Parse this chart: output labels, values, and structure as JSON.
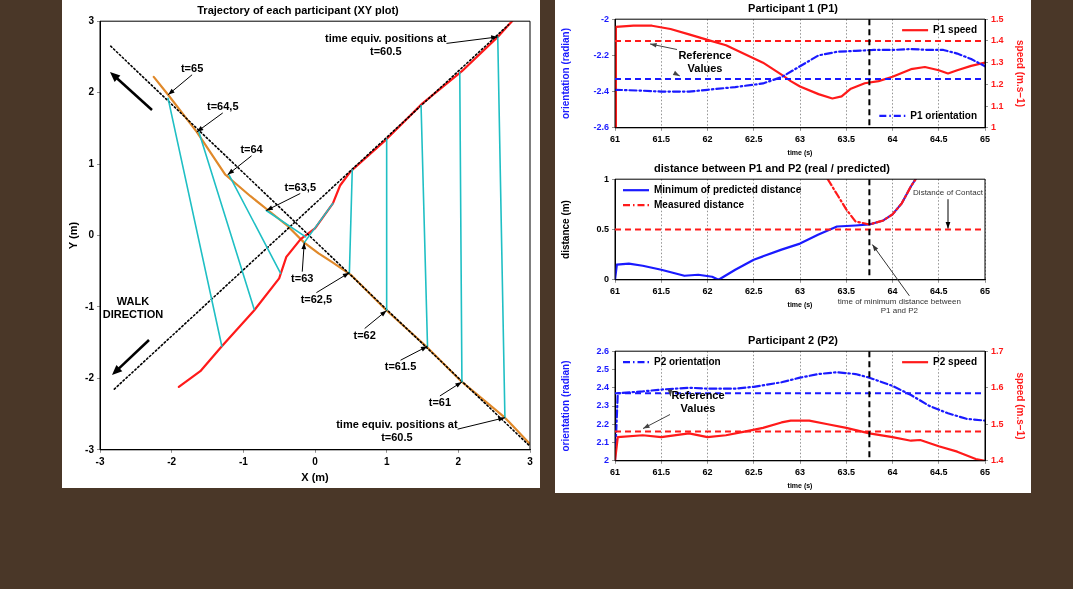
{
  "chart_data": [
    {
      "type": "line",
      "title": "Trajectory of each participant (XY plot)",
      "xlabel": "X (m)",
      "ylabel": "Y (m)",
      "xlim": [
        -3,
        3
      ],
      "xticks": [
        -3,
        -2,
        -1,
        0,
        1,
        2,
        3
      ],
      "ylim": [
        -3,
        3
      ],
      "yticks": [
        -3,
        -2,
        -1,
        0,
        1,
        2,
        3
      ],
      "series": [
        {
          "color": "#e0892a",
          "x": [
            -2.25,
            -2.05,
            -1.65,
            -1.25,
            -0.9,
            -0.65,
            -0.4,
            -0.15,
            0.05,
            0.25,
            0.5,
            1.0,
            1.55,
            2.05,
            2.65,
            3.0
          ],
          "values": [
            2.22,
            1.97,
            1.45,
            0.85,
            0.55,
            0.35,
            0.15,
            -0.1,
            -0.25,
            -0.38,
            -0.55,
            -1.05,
            -1.55,
            -2.05,
            -2.55,
            -2.92
          ]
        },
        {
          "color": "#ff1a1a",
          "x": [
            -1.9,
            -1.6,
            -1.3,
            -0.85,
            -0.5,
            -0.4,
            -0.2,
            0.0,
            0.25,
            0.35,
            0.5,
            1.0,
            1.5,
            2.05,
            2.55,
            2.75
          ],
          "values": [
            -2.12,
            -1.9,
            -1.55,
            -1.05,
            -0.6,
            -0.3,
            -0.05,
            0.1,
            0.45,
            0.7,
            0.9,
            1.35,
            1.85,
            2.3,
            2.78,
            3.0
          ]
        },
        {
          "color": "#000000",
          "line_style": "dotted",
          "x": [
            -2.85,
            3.0
          ],
          "values": [
            2.65,
            -2.95
          ]
        },
        {
          "color": "#000000",
          "line_style": "dotted",
          "x": [
            -2.8,
            2.7
          ],
          "values": [
            -2.15,
            2.95
          ]
        },
        {
          "color": "#1fbfc4",
          "x": [
            2.65,
            2.55
          ],
          "values": [
            -2.55,
            2.78
          ]
        },
        {
          "color": "#1fbfc4",
          "x": [
            2.05,
            2.02
          ],
          "values": [
            -2.05,
            2.28
          ]
        },
        {
          "color": "#1fbfc4",
          "x": [
            1.57,
            1.48
          ],
          "values": [
            -1.55,
            1.82
          ]
        },
        {
          "color": "#1fbfc4",
          "x": [
            1.0,
            1.0
          ],
          "values": [
            -1.05,
            1.35
          ]
        },
        {
          "color": "#1fbfc4",
          "x": [
            0.48,
            0.52
          ],
          "values": [
            -0.52,
            0.92
          ]
        },
        {
          "color": "#1fbfc4",
          "x": [
            -0.15,
            0.25
          ],
          "values": [
            -0.1,
            0.45
          ]
        },
        {
          "color": "#1fbfc4",
          "x": [
            -0.68,
            -0.13
          ],
          "values": [
            0.35,
            -0.02
          ]
        },
        {
          "color": "#1fbfc4",
          "x": [
            -1.2,
            -0.48
          ],
          "values": [
            0.85,
            -0.53
          ]
        },
        {
          "color": "#1fbfc4",
          "x": [
            -1.62,
            -0.85
          ],
          "values": [
            1.45,
            -1.03
          ]
        },
        {
          "color": "#1fbfc4",
          "x": [
            -2.05,
            -1.3
          ],
          "values": [
            1.92,
            -1.55
          ]
        }
      ],
      "annotations": [
        {
          "text": "t=65",
          "x": -2.05,
          "y": 1.97
        },
        {
          "text": "t=64,5",
          "x": -1.65,
          "y": 1.45
        },
        {
          "text": "t=64",
          "x": -1.22,
          "y": 0.85
        },
        {
          "text": "t=63,5",
          "x": -0.68,
          "y": 0.35
        },
        {
          "text": "t=63",
          "x": -0.15,
          "y": -0.1
        },
        {
          "text": "t=62,5",
          "x": 0.48,
          "y": -0.52
        },
        {
          "text": "t=62",
          "x": 1.0,
          "y": -1.05
        },
        {
          "text": "t=61.5",
          "x": 1.57,
          "y": -1.55
        },
        {
          "text": "t=61",
          "x": 2.05,
          "y": -2.05
        },
        {
          "text": "time equiv. positions at t=60.5",
          "x": 2.65,
          "y": -2.55
        },
        {
          "text": "time equiv. positions at t=60.5",
          "x": 2.55,
          "y": 2.78
        },
        "WALK DIRECTION"
      ]
    },
    {
      "type": "line",
      "title": "Participant 1 (P1)",
      "xlabel": "time (s)",
      "ylabel": "orientation (radian)",
      "y2label": "speed (m.s−1)",
      "xlim": [
        61,
        65
      ],
      "xticks": [
        61,
        61.5,
        62,
        62.5,
        63,
        63.5,
        64,
        64.5,
        65
      ],
      "ylim": [
        -2.6,
        -2
      ],
      "yticks": [
        -2.6,
        -2.4,
        -2.2,
        -2
      ],
      "y2lim": [
        1,
        1.5
      ],
      "y2ticks": [
        1,
        1.1,
        1.2,
        1.3,
        1.4,
        1.5
      ],
      "grid": "x",
      "legend": "right",
      "series": [
        {
          "name": "P1 speed",
          "color": "#ff1a1a",
          "axis": "y2",
          "line_style": "solid",
          "x": [
            61,
            61.01,
            61.2,
            61.4,
            61.6,
            61.8,
            62,
            62.2,
            62.4,
            62.6,
            62.8,
            62.9,
            63,
            63.2,
            63.35,
            63.45,
            63.55,
            63.7,
            63.85,
            64,
            64.2,
            64.35,
            64.5,
            64.6,
            64.7,
            64.85,
            65
          ],
          "values": [
            1.0,
            1.465,
            1.47,
            1.47,
            1.455,
            1.43,
            1.405,
            1.38,
            1.34,
            1.3,
            1.245,
            1.215,
            1.19,
            1.155,
            1.135,
            1.145,
            1.18,
            1.205,
            1.215,
            1.235,
            1.27,
            1.28,
            1.265,
            1.25,
            1.265,
            1.285,
            1.3
          ]
        },
        {
          "name": "P1 orientation",
          "color": "#1a1aff",
          "axis": "y",
          "line_style": "dashdot",
          "x": [
            61,
            61.3,
            61.5,
            61.8,
            62,
            62.3,
            62.6,
            62.8,
            63,
            63.2,
            63.4,
            63.6,
            63.8,
            64,
            64.2,
            64.4,
            64.55,
            64.7,
            64.85,
            65
          ],
          "values": [
            -2.39,
            -2.395,
            -2.4,
            -2.4,
            -2.39,
            -2.375,
            -2.355,
            -2.32,
            -2.26,
            -2.2,
            -2.18,
            -2.175,
            -2.17,
            -2.17,
            -2.165,
            -2.17,
            -2.17,
            -2.19,
            -2.22,
            -2.26
          ]
        }
      ],
      "ref_lines": [
        {
          "axis": "y2",
          "value": 1.4,
          "color": "#ff1a1a",
          "line_style": "dashed"
        },
        {
          "axis": "y",
          "value": -2.33,
          "color": "#1a1aff",
          "line_style": "dashed"
        },
        {
          "axis": "x",
          "value": 63.75,
          "color": "#000000",
          "line_style": "dashed"
        }
      ],
      "annotations": [
        {
          "text": "Reference Values",
          "x": 61.7,
          "y": -2.33
        }
      ]
    },
    {
      "type": "line",
      "title": "distance between P1 and P2 (real / predicted)",
      "xlabel": "time (s)",
      "ylabel": "distance (m)",
      "xlim": [
        61,
        65
      ],
      "xticks": [
        61,
        61.5,
        62,
        62.5,
        63,
        63.5,
        64,
        64.5,
        65
      ],
      "ylim": [
        0,
        1
      ],
      "yticks": [
        0,
        0.5,
        1
      ],
      "grid": "x",
      "legend": "top left",
      "series": [
        {
          "name": "Minimum of predicted distance",
          "color": "#1a1aff",
          "line_style": "solid",
          "x": [
            61,
            61.02,
            61.15,
            61.3,
            61.5,
            61.75,
            61.9,
            62.05,
            62.12,
            62.3,
            62.5,
            62.8,
            63,
            63.2,
            63.4,
            63.6,
            63.75,
            63.9,
            64,
            64.1,
            64.2,
            64.25
          ],
          "values": [
            0,
            0.15,
            0.16,
            0.14,
            0.1,
            0.04,
            0.05,
            0.03,
            0,
            0.1,
            0.2,
            0.3,
            0.36,
            0.45,
            0.53,
            0.54,
            0.55,
            0.59,
            0.65,
            0.76,
            0.93,
            1.0
          ]
        },
        {
          "name": "Measured distance",
          "color": "#ff1a1a",
          "line_style": "dashdot",
          "x": [
            63.3,
            63.4,
            63.5,
            63.6,
            63.75,
            63.9,
            64,
            64.1,
            64.2,
            64.25
          ],
          "values": [
            1.0,
            0.85,
            0.7,
            0.58,
            0.55,
            0.59,
            0.65,
            0.76,
            0.93,
            1.0
          ]
        }
      ],
      "ref_lines": [
        {
          "axis": "y",
          "value": 0.5,
          "label": "Distance of Contact",
          "color": "#ff1a1a",
          "line_style": "dashed"
        },
        {
          "axis": "x",
          "value": 63.75,
          "label": "time of minimum distance between P1 and P2",
          "color": "#000000",
          "line_style": "dashed"
        }
      ]
    },
    {
      "type": "line",
      "title": "Participant 2 (P2)",
      "xlabel": "time (s)",
      "ylabel": "orientation (radian)",
      "y2label": "speed (m.s−1)",
      "xlim": [
        61,
        65
      ],
      "xticks": [
        61,
        61.5,
        62,
        62.5,
        63,
        63.5,
        64,
        64.5,
        65
      ],
      "ylim": [
        2,
        2.6
      ],
      "yticks": [
        2,
        2.1,
        2.2,
        2.3,
        2.4,
        2.5,
        2.6
      ],
      "y2lim": [
        1.4,
        1.7
      ],
      "y2ticks": [
        1.4,
        1.5,
        1.6,
        1.7
      ],
      "grid": "x",
      "legend": "top",
      "series": [
        {
          "name": "P2 orientation",
          "color": "#1a1aff",
          "axis": "y",
          "line_style": "dashdot",
          "x": [
            61,
            61.03,
            61.3,
            61.5,
            61.8,
            62,
            62.3,
            62.5,
            62.8,
            63,
            63.2,
            63.4,
            63.6,
            63.75,
            64,
            64.2,
            64.4,
            64.6,
            64.8,
            65
          ],
          "values": [
            2.0,
            2.37,
            2.38,
            2.39,
            2.4,
            2.395,
            2.395,
            2.405,
            2.43,
            2.455,
            2.475,
            2.485,
            2.475,
            2.455,
            2.41,
            2.36,
            2.3,
            2.26,
            2.23,
            2.22
          ]
        },
        {
          "name": "P2 speed",
          "color": "#ff1a1a",
          "axis": "y2",
          "line_style": "solid",
          "x": [
            61,
            61.03,
            61.3,
            61.5,
            61.8,
            62,
            62.2,
            62.4,
            62.6,
            62.8,
            62.9,
            63.1,
            63.3,
            63.5,
            63.75,
            64,
            64.2,
            64.3,
            64.5,
            64.7,
            64.9,
            65
          ],
          "values": [
            1.4,
            1.465,
            1.47,
            1.465,
            1.475,
            1.465,
            1.47,
            1.48,
            1.49,
            1.505,
            1.51,
            1.51,
            1.5,
            1.49,
            1.475,
            1.465,
            1.455,
            1.457,
            1.44,
            1.425,
            1.405,
            1.4
          ]
        }
      ],
      "ref_lines": [
        {
          "axis": "y",
          "value": 2.37,
          "color": "#1a1aff",
          "line_style": "dashed"
        },
        {
          "axis": "y2",
          "value": 1.48,
          "color": "#ff1a1a",
          "line_style": "dashed"
        },
        {
          "axis": "x",
          "value": 63.75,
          "color": "#000000",
          "line_style": "dashed"
        }
      ],
      "annotations": [
        {
          "text": "Reference Values",
          "x": 61.6,
          "y": 2.37
        }
      ]
    }
  ]
}
